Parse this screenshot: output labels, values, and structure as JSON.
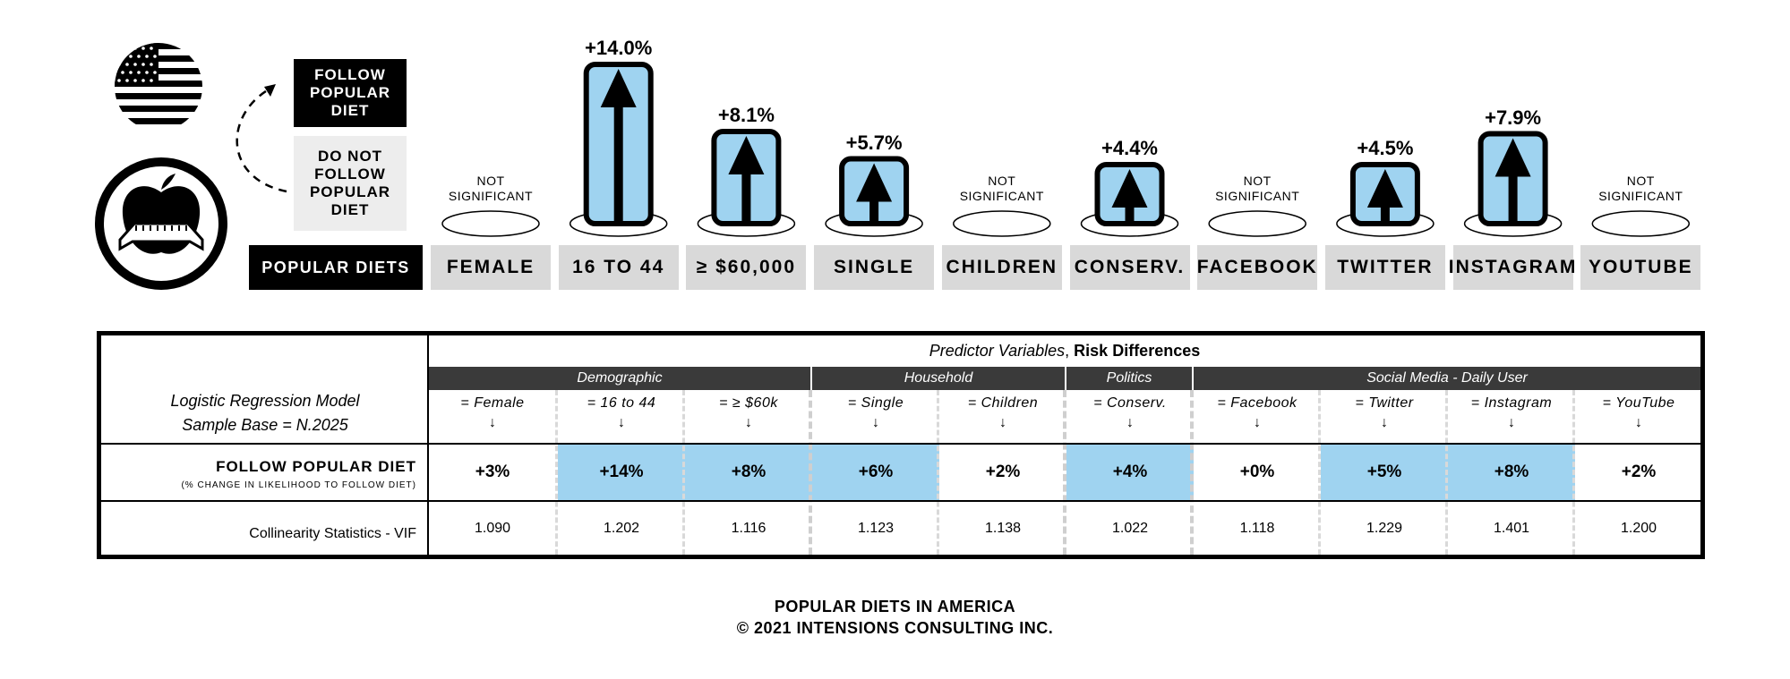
{
  "legend": {
    "follow": "FOLLOW\nPOPULAR\nDIET",
    "not_follow": "DO NOT\nFOLLOW\nPOPULAR\nDIET",
    "popular_diets": "POPULAR DIETS"
  },
  "colors": {
    "highlight": "#9fd3f0",
    "dark": "#000000",
    "label_bg": "#d9d9d9",
    "group_bg": "#3a3a3a"
  },
  "icons": [
    "us-flag-icon",
    "apple-measuring-tape-icon",
    "curved-dashed-arrow-icon"
  ],
  "chart_data": {
    "type": "bar",
    "categories": [
      "FEMALE",
      "16 TO 44",
      "≥ $60,000",
      "SINGLE",
      "CHILDREN",
      "CONSERV.",
      "FACEBOOK",
      "TWITTER",
      "INSTAGRAM",
      "YOUTUBE"
    ],
    "values": [
      null,
      14.0,
      8.1,
      5.7,
      null,
      4.4,
      null,
      4.5,
      7.9,
      null
    ],
    "value_labels": [
      "NOT\nSIGNIFICANT",
      "+14.0%",
      "+8.1%",
      "+5.7%",
      "NOT\nSIGNIFICANT",
      "+4.4%",
      "NOT\nSIGNIFICANT",
      "+4.5%",
      "+7.9%",
      "NOT\nSIGNIFICANT"
    ],
    "significant": [
      false,
      true,
      true,
      true,
      false,
      true,
      false,
      true,
      true,
      false
    ]
  },
  "table": {
    "model_label_1": "Logistic Regression Model",
    "model_label_2": "Sample Base = N.2025",
    "header_italic": "Predictor Variables",
    "header_sep": ", ",
    "header_bold": "Risk Differences",
    "groups": [
      "Demographic",
      "Household",
      "Politics",
      "Social Media - Daily User"
    ],
    "columns": [
      "= Female",
      "= 16 to 44",
      "= ≥ $60k",
      "= Single",
      "= Children",
      "= Conserv.",
      "= Facebook",
      "= Twitter",
      "= Instagram",
      "= YouTube"
    ],
    "arrow": "🡣",
    "row1_label": "FOLLOW POPULAR DIET",
    "row1_sub": "(% CHANGE IN LIKELIHOOD TO FOLLOW DIET)",
    "row1_values": [
      "+3%",
      "+14%",
      "+8%",
      "+6%",
      "+2%",
      "+4%",
      "+0%",
      "+5%",
      "+8%",
      "+2%"
    ],
    "row1_highlight": [
      false,
      true,
      true,
      true,
      false,
      true,
      false,
      true,
      true,
      false
    ],
    "row2_label": "Collinearity Statistics - VIF",
    "row2_values": [
      "1.090",
      "1.202",
      "1.116",
      "1.123",
      "1.138",
      "1.022",
      "1.118",
      "1.229",
      "1.401",
      "1.200"
    ]
  },
  "footer": {
    "line1": "POPULAR DIETS  IN AMERICA",
    "line2": "© 2021 INTENSIONS CONSULTING INC."
  }
}
